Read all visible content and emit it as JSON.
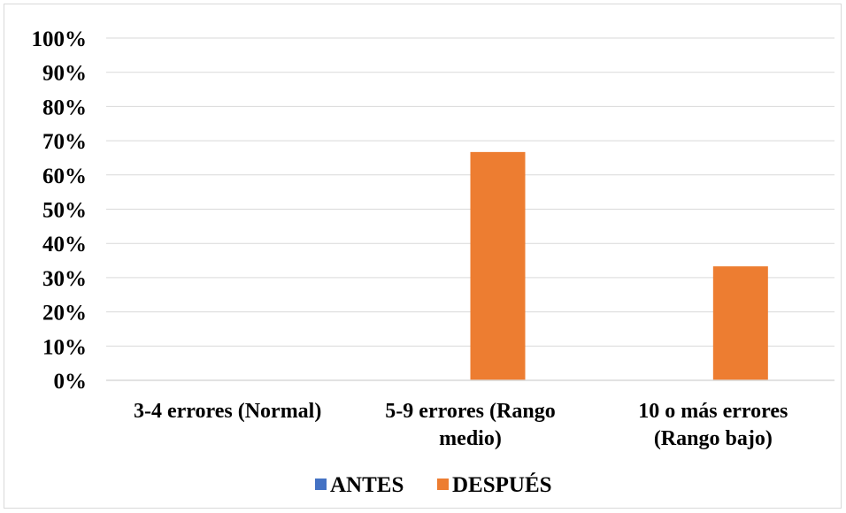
{
  "chart_data": {
    "type": "bar",
    "categories": [
      [
        "3-4 errores (Normal)"
      ],
      [
        "5-9 errores (Rango",
        "medio)"
      ],
      [
        "10 o más errores",
        "(Rango bajo)"
      ]
    ],
    "series": [
      {
        "name": "ANTES",
        "color": "#4472C4",
        "values": [
          0,
          0,
          0
        ]
      },
      {
        "name": "DESPUÉS",
        "color": "#ED7D31",
        "values": [
          0,
          66.7,
          33.3
        ]
      }
    ],
    "yticks": [
      "0%",
      "10%",
      "20%",
      "30%",
      "40%",
      "50%",
      "60%",
      "70%",
      "80%",
      "90%",
      "100%"
    ],
    "ylim": [
      0,
      100
    ],
    "grid": true,
    "legend_position": "bottom"
  }
}
